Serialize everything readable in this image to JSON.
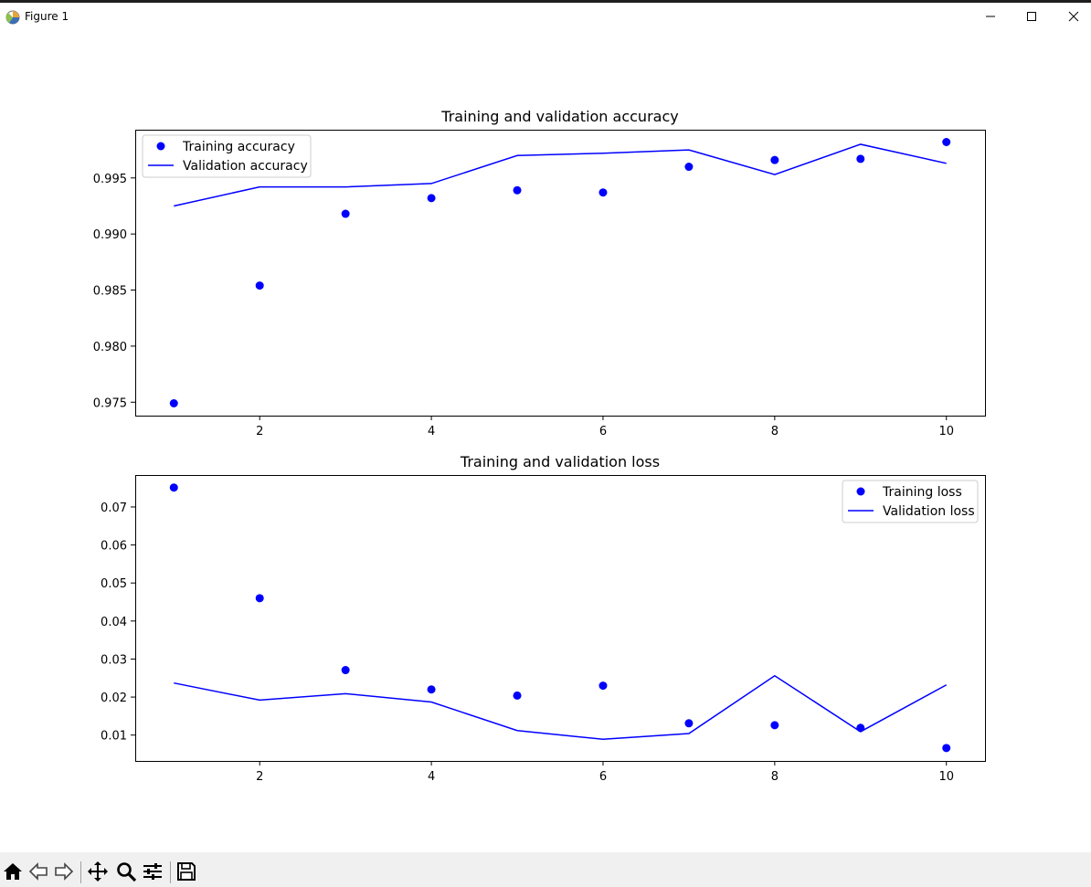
{
  "window": {
    "title": "Figure 1"
  },
  "toolbar": {
    "buttons": [
      {
        "name": "home-icon"
      },
      {
        "name": "back-arrow-icon"
      },
      {
        "name": "forward-arrow-icon"
      },
      {
        "name": "pan-icon"
      },
      {
        "name": "zoom-icon"
      },
      {
        "name": "configure-subplots-icon"
      },
      {
        "name": "save-icon"
      }
    ]
  },
  "colors": {
    "series": "#0000ff",
    "axis": "#000000"
  },
  "chart_data": [
    {
      "type": "line",
      "title": "Training and validation accuracy",
      "xlabel": "",
      "ylabel": "",
      "x": [
        1,
        2,
        3,
        4,
        5,
        6,
        7,
        8,
        9,
        10
      ],
      "xlim": [
        0.55,
        10.45
      ],
      "ylim": [
        0.9738,
        0.9993
      ],
      "xticks": [
        2,
        4,
        6,
        8,
        10
      ],
      "xtick_labels": [
        "2",
        "4",
        "6",
        "8",
        "10"
      ],
      "yticks": [
        0.975,
        0.98,
        0.985,
        0.99,
        0.995
      ],
      "ytick_labels": [
        "0.975",
        "0.980",
        "0.985",
        "0.990",
        "0.995"
      ],
      "legend_position": "upper left",
      "grid": false,
      "series": [
        {
          "name": "Training accuracy",
          "style": "points",
          "values": [
            0.9749,
            0.9854,
            0.9918,
            0.9932,
            0.9939,
            0.9937,
            0.996,
            0.9966,
            0.9967,
            0.9982
          ]
        },
        {
          "name": "Validation accuracy",
          "style": "line",
          "values": [
            0.9925,
            0.9942,
            0.9942,
            0.9945,
            0.997,
            0.9972,
            0.9975,
            0.9953,
            0.998,
            0.9963
          ]
        }
      ]
    },
    {
      "type": "line",
      "title": "Training and validation loss",
      "xlabel": "",
      "ylabel": "",
      "x": [
        1,
        2,
        3,
        4,
        5,
        6,
        7,
        8,
        9,
        10
      ],
      "xlim": [
        0.55,
        10.45
      ],
      "ylim": [
        0.0032,
        0.0784
      ],
      "xticks": [
        2,
        4,
        6,
        8,
        10
      ],
      "xtick_labels": [
        "2",
        "4",
        "6",
        "8",
        "10"
      ],
      "yticks": [
        0.01,
        0.02,
        0.03,
        0.04,
        0.05,
        0.06,
        0.07
      ],
      "ytick_labels": [
        "0.01",
        "0.02",
        "0.03",
        "0.04",
        "0.05",
        "0.06",
        "0.07"
      ],
      "legend_position": "upper right",
      "grid": false,
      "series": [
        {
          "name": "Training loss",
          "style": "points",
          "values": [
            0.0751,
            0.046,
            0.0271,
            0.022,
            0.0204,
            0.023,
            0.0131,
            0.0126,
            0.0119,
            0.0066
          ]
        },
        {
          "name": "Validation loss",
          "style": "line",
          "values": [
            0.0237,
            0.0192,
            0.0209,
            0.0187,
            0.0112,
            0.0089,
            0.0104,
            0.0256,
            0.0109,
            0.0232
          ]
        }
      ]
    }
  ]
}
